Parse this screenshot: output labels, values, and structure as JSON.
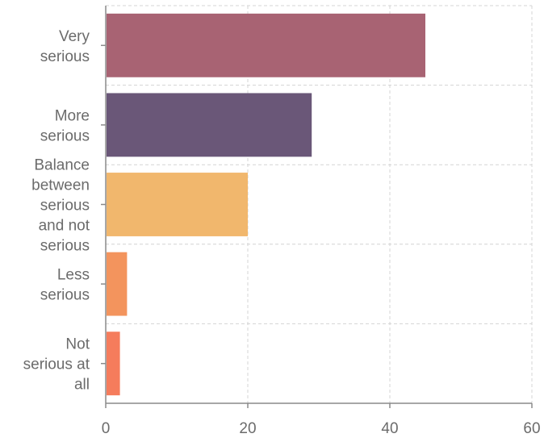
{
  "chart_data": {
    "type": "bar",
    "orientation": "horizontal",
    "categories": [
      [
        "Very",
        "serious"
      ],
      [
        "More",
        "serious"
      ],
      [
        "Balance",
        "between",
        "serious",
        "and not",
        "serious"
      ],
      [
        "Less",
        "serious"
      ],
      [
        "Not",
        "serious at",
        "all"
      ]
    ],
    "values": [
      45,
      29,
      20,
      3,
      2
    ],
    "colors": [
      "#a86373",
      "#6a5778",
      "#f1b76d",
      "#f3945d",
      "#f57c5c"
    ],
    "xlim": [
      0,
      60
    ],
    "xticks": [
      "0",
      "20",
      "40",
      "60"
    ],
    "grid": true,
    "legend": false
  }
}
